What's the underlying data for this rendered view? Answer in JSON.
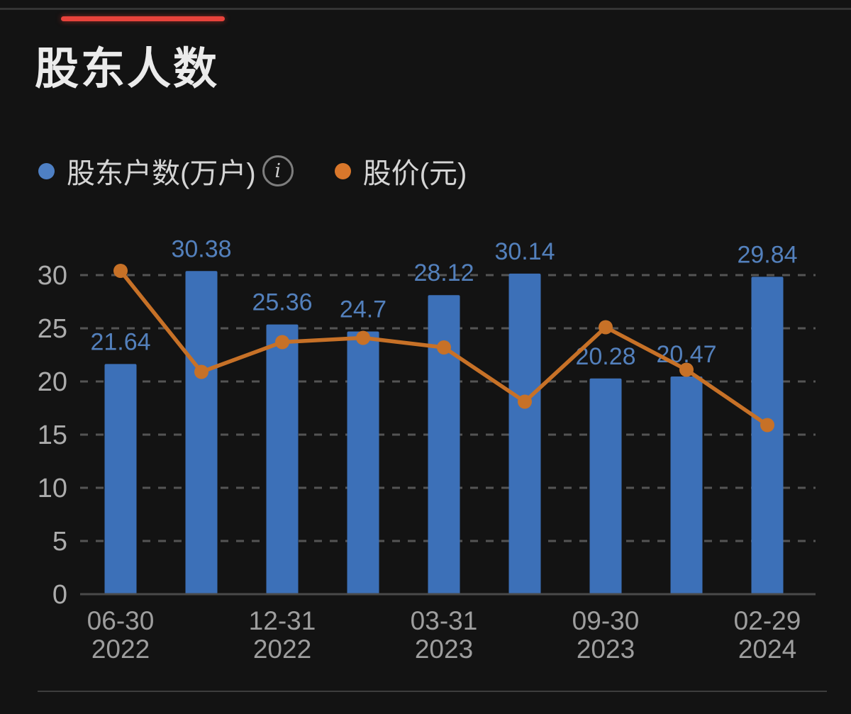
{
  "page": {
    "title": "股东人数",
    "background": "#131313"
  },
  "colors": {
    "accent_red": "#e8423b",
    "bar_blue": "#3c70b8",
    "bar_label_blue": "#5380bc",
    "line_orange": "#c77127",
    "legend_dot_blue": "#4e80c4",
    "legend_dot_orange": "#d9772b",
    "grid": "#545454",
    "axis": "#4a4a4a",
    "y_tick_text": "#acacac",
    "x_tick_text": "#9e9e9e"
  },
  "legend": {
    "items": [
      {
        "label": "股东户数(万户)",
        "color": "#4e80c4"
      },
      {
        "label": "股价(元)",
        "color": "#d9772b"
      }
    ],
    "info_icon_glyph": "i"
  },
  "chart_data": {
    "type": "bar",
    "title": "股东人数",
    "bar_count": 9,
    "series": [
      {
        "name": "股东户数(万户)",
        "type": "bar",
        "color": "#3c70b8",
        "values": [
          21.64,
          30.38,
          25.36,
          24.7,
          28.12,
          30.14,
          20.28,
          20.47,
          29.84
        ],
        "value_labels": [
          "21.64",
          "30.38",
          "25.36",
          "24.7",
          "28.12",
          "30.14",
          "20.28",
          "20.47",
          "29.84"
        ],
        "label_color": "#5380bc"
      },
      {
        "name": "股价(元)",
        "type": "line",
        "color": "#c77127",
        "values": [
          30.4,
          20.9,
          23.7,
          24.1,
          23.2,
          18.1,
          25.1,
          21.1,
          15.9
        ],
        "values_estimated_from_pixels": true
      }
    ],
    "x_ticks": [
      {
        "bar_index": 0,
        "line1": "06-30",
        "line2": "2022"
      },
      {
        "bar_index": 2,
        "line1": "12-31",
        "line2": "2022"
      },
      {
        "bar_index": 4,
        "line1": "03-31",
        "line2": "2023"
      },
      {
        "bar_index": 6,
        "line1": "09-30",
        "line2": "2023"
      },
      {
        "bar_index": 8,
        "line1": "02-29",
        "line2": "2024"
      }
    ],
    "y_axis": {
      "ticks": [
        0,
        5,
        10,
        15,
        20,
        25,
        30
      ],
      "range": [
        0,
        32.5
      ],
      "grid": "dashed"
    },
    "legend_position": "top-left",
    "secondary_axis_labels_shown": false
  }
}
